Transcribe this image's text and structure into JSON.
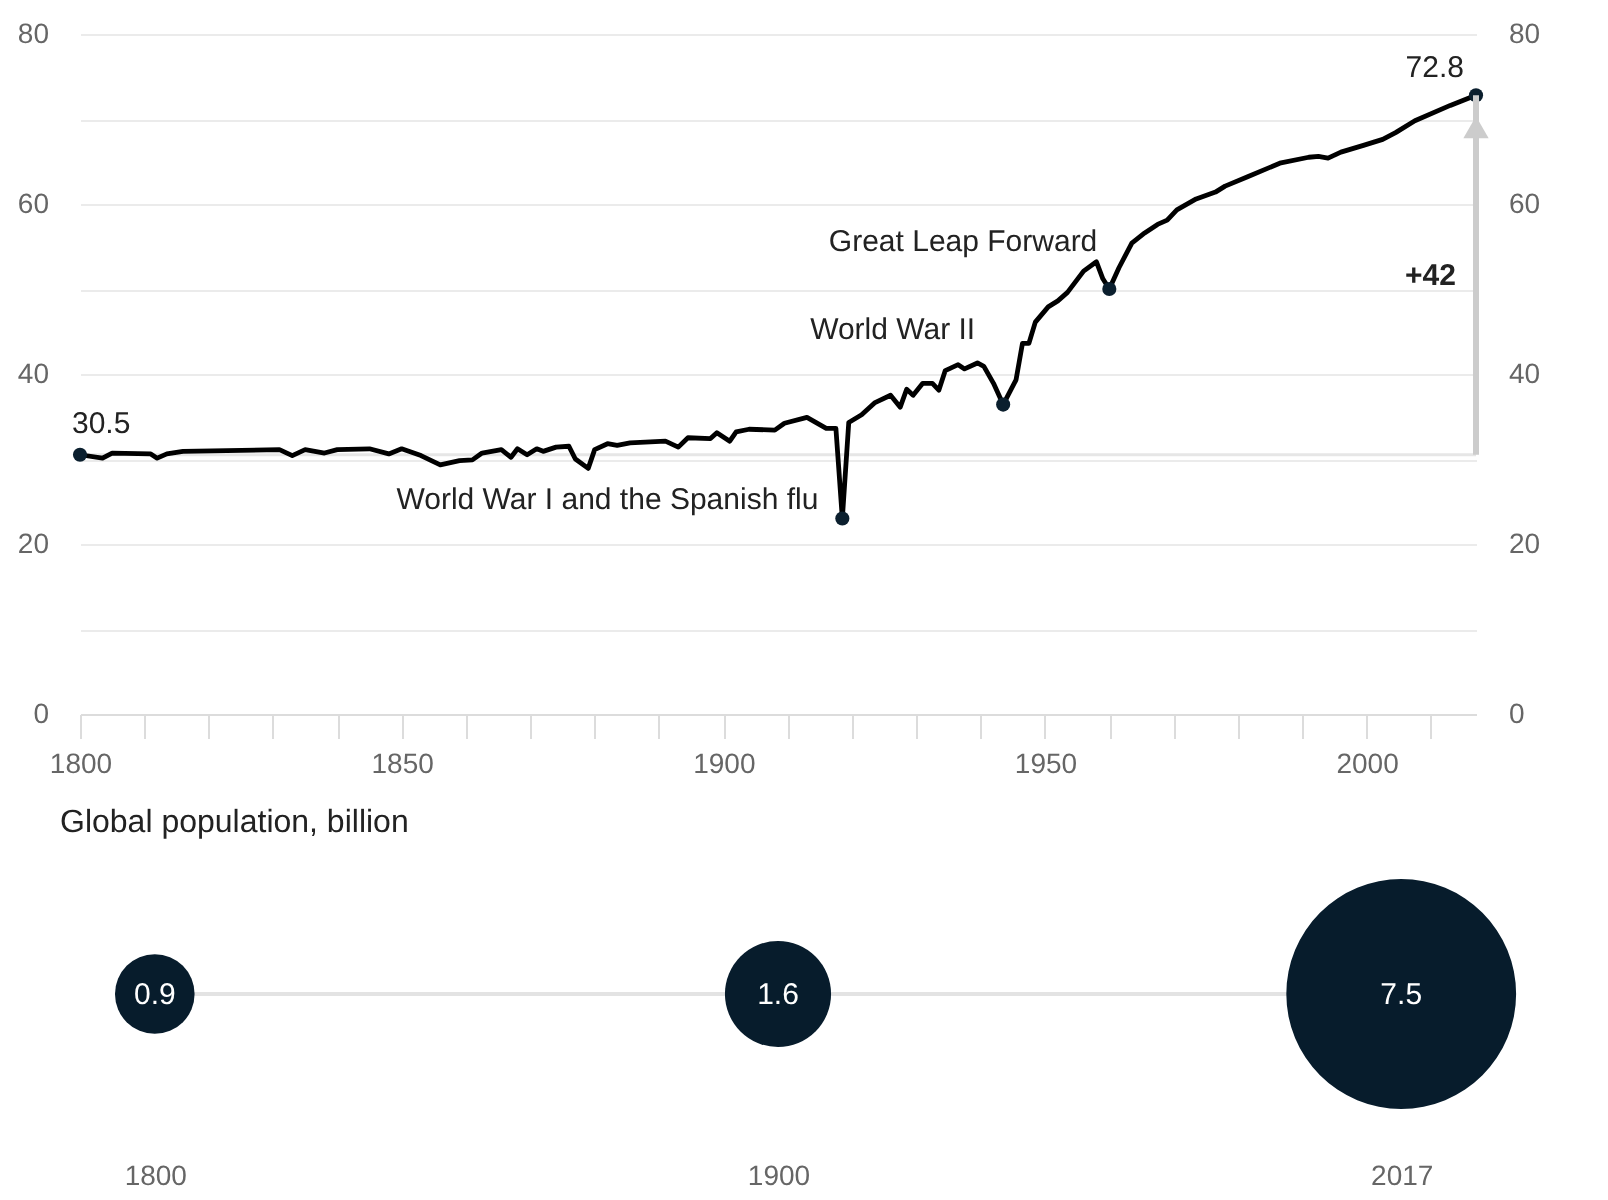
{
  "chart_data": [
    {
      "type": "line",
      "xlim": [
        1800,
        2017
      ],
      "ylim": [
        0,
        80
      ],
      "y2lim": [
        0,
        80
      ],
      "xticks": [
        1800,
        {
          "value": 1810,
          "label": null
        },
        {
          "value": 1820,
          "label": null
        },
        {
          "value": 1830,
          "label": null
        },
        {
          "value": 1840,
          "label": null
        },
        1850,
        {
          "value": 1860,
          "label": null
        },
        {
          "value": 1870,
          "label": null
        },
        {
          "value": 1880,
          "label": null
        },
        {
          "value": 1890,
          "label": null
        },
        1900,
        {
          "value": 1910,
          "label": null
        },
        {
          "value": 1920,
          "label": null
        },
        {
          "value": 1930,
          "label": null
        },
        {
          "value": 1940,
          "label": null
        },
        1950,
        {
          "value": 1960,
          "label": null
        },
        {
          "value": 1970,
          "label": null
        },
        {
          "value": 1980,
          "label": null
        },
        {
          "value": 1990,
          "label": null
        },
        2000,
        {
          "value": 2010,
          "label": null
        }
      ],
      "yticks": [
        0,
        {
          "value": 10,
          "label": null
        },
        20,
        {
          "value": 30,
          "label": null
        },
        40,
        {
          "value": 50,
          "label": null
        },
        60,
        {
          "value": 70,
          "label": null
        },
        80
      ],
      "y2ticks": [
        0,
        20,
        40,
        60,
        80
      ],
      "grid": "y",
      "series": [
        {
          "type": "line",
          "color": "#000000",
          "marker": "none",
          "x": [
            1800,
            1803.5,
            1805,
            1811,
            1812,
            1813.5,
            1816,
            1831,
            1833,
            1835,
            1838,
            1840,
            1845,
            1848,
            1850,
            1853,
            1856,
            1859,
            1861,
            1862.5,
            1865.5,
            1867,
            1868,
            1869.5,
            1871,
            1872,
            1874,
            1876,
            1877,
            1879,
            1880,
            1882,
            1883.5,
            1885.5,
            1891,
            1893,
            1894.5,
            1898,
            1899,
            1900,
            1901,
            1902,
            1904,
            1908,
            1909.5,
            1913,
            1916,
            1917.5,
            1918.5,
            1919.5,
            1921.5,
            1923.5,
            1926,
            1927.5,
            1928.5,
            1929.5,
            1931,
            1932.5,
            1933.5,
            1934.5,
            1936.5,
            1937.5,
            1939.5,
            1940.5,
            1942,
            1943.5,
            1945.5,
            1946.5,
            1947.5,
            1948.5,
            1950.5,
            1952,
            1953.5,
            1956,
            1958,
            1959,
            1960,
            1961.5,
            1963.5,
            1965.5,
            1967.5,
            1969,
            1970.5,
            1973.5,
            1976.5,
            1978,
            1981.5,
            1986.5,
            1991,
            1992.5,
            1994,
            1996,
            1999.5,
            2002.5,
            2004.5,
            2007.5,
            2013,
            2017
          ],
          "values": [
            30.5,
            30.1,
            30.7,
            30.6,
            30.1,
            30.6,
            30.9,
            31.1,
            30.4,
            31.1,
            30.7,
            31.1,
            31.2,
            30.6,
            31.2,
            30.4,
            29.3,
            29.8,
            29.9,
            30.7,
            31.1,
            30.2,
            31.2,
            30.5,
            31.2,
            30.9,
            31.4,
            31.5,
            30.0,
            28.9,
            31.1,
            31.8,
            31.6,
            31.9,
            32.1,
            31.4,
            32.5,
            32.4,
            33.1,
            32.6,
            32.1,
            33.2,
            33.5,
            33.4,
            34.2,
            34.9,
            33.6,
            33.6,
            23.0,
            34.3,
            35.2,
            36.6,
            37.5,
            36.1,
            38.2,
            37.5,
            38.9,
            38.9,
            38.1,
            40.4,
            41.1,
            40.6,
            41.3,
            40.9,
            38.9,
            36.4,
            39.3,
            43.6,
            43.6,
            46.1,
            47.9,
            48.6,
            49.6,
            52.1,
            53.2,
            51.2,
            50.0,
            52.5,
            55.4,
            56.6,
            57.6,
            58.1,
            59.3,
            60.6,
            61.4,
            62.1,
            63.2,
            64.8,
            65.5,
            65.6,
            65.4,
            66.1,
            66.9,
            67.6,
            68.4,
            69.8,
            71.6,
            72.8
          ]
        },
        {
          "type": "scatter",
          "color": "#0b1f2e",
          "marker": "circle",
          "x": [
            1800,
            1918.5,
            1943.5,
            1960,
            2017
          ],
          "values": [
            30.5,
            23.0,
            36.4,
            50.0,
            72.8
          ]
        }
      ],
      "ref_lines": [
        {
          "axis": "y",
          "value": 30.5,
          "color": "#e6e6e6"
        }
      ],
      "annotations": [
        {
          "text": "30.5",
          "x": 1800,
          "y": 30.5
        },
        {
          "text": "72.8",
          "x": 2017,
          "y": 72.8
        },
        {
          "text": "World War I and the Spanish flu",
          "x": 1918.5,
          "y": 23.0
        },
        {
          "text": "World War II",
          "x": 1943.5,
          "y": 36.4
        },
        {
          "text": "Great Leap Forward",
          "x": 1960,
          "y": 50.0
        },
        "+42"
      ]
    },
    {
      "type": "other",
      "title": "Global population, billion",
      "categories": [
        "1800",
        "1900",
        "2017"
      ],
      "values": [
        0.9,
        1.6,
        7.5
      ],
      "data_labels": true,
      "color": "#071c2c"
    }
  ]
}
